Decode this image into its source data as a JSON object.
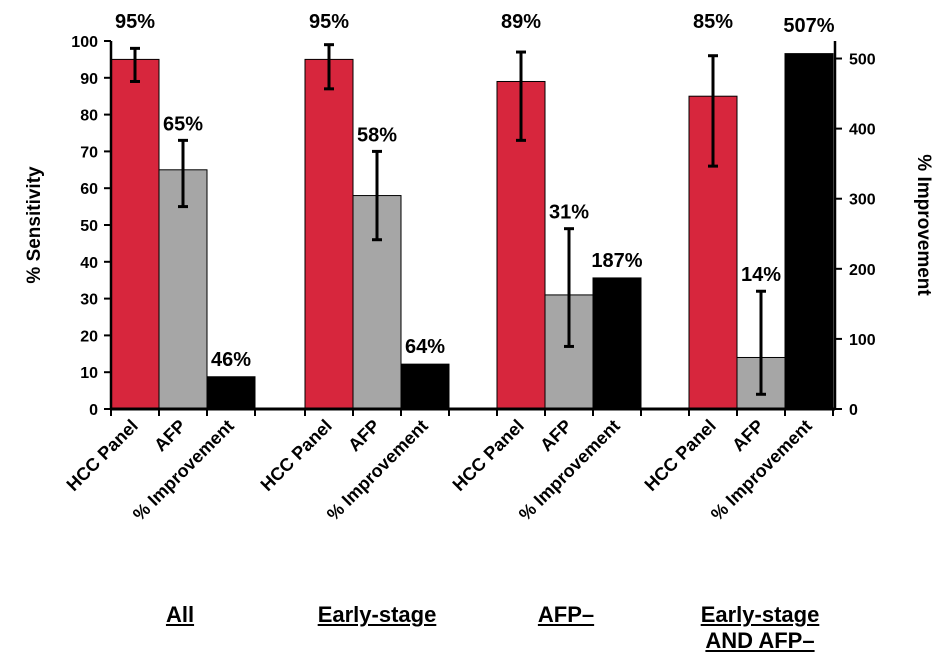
{
  "chart_data": {
    "type": "bar",
    "y_left_label": "% Sensitivity",
    "y_right_label": "% Improvement",
    "y_left_range": [
      0,
      100
    ],
    "y_left_ticks": [
      "0",
      "10",
      "20",
      "30",
      "40",
      "50",
      "60",
      "70",
      "80",
      "90",
      "100"
    ],
    "y_right_range": [
      0,
      525
    ],
    "y_right_ticks": [
      "0",
      "100",
      "200",
      "300",
      "400",
      "500"
    ],
    "grid": false,
    "legend": "none",
    "bar_colors": {
      "HCC Panel": "#d7263d",
      "AFP": "#a6a6a6",
      "% Improvement": "#000000"
    },
    "groups": [
      {
        "name": "All",
        "bars": [
          {
            "category": "HCC Panel",
            "axis": "left",
            "value": 95,
            "error": [
              89,
              98
            ],
            "label": "95%"
          },
          {
            "category": "AFP",
            "axis": "left",
            "value": 65,
            "error": [
              55,
              73
            ],
            "label": "65%"
          },
          {
            "category": "% Improvement",
            "axis": "right",
            "value": 46,
            "label": "46%"
          }
        ]
      },
      {
        "name": "Early-stage",
        "bars": [
          {
            "category": "HCC Panel",
            "axis": "left",
            "value": 95,
            "error": [
              87,
              99
            ],
            "label": "95%"
          },
          {
            "category": "AFP",
            "axis": "left",
            "value": 58,
            "error": [
              46,
              70
            ],
            "label": "58%"
          },
          {
            "category": "% Improvement",
            "axis": "right",
            "value": 64,
            "label": "64%"
          }
        ]
      },
      {
        "name": "AFP–",
        "bars": [
          {
            "category": "HCC Panel",
            "axis": "left",
            "value": 89,
            "error": [
              73,
              97
            ],
            "label": "89%"
          },
          {
            "category": "AFP",
            "axis": "left",
            "value": 31,
            "error": [
              17,
              49
            ],
            "label": "31%"
          },
          {
            "category": "% Improvement",
            "axis": "right",
            "value": 187,
            "label": "187%"
          }
        ]
      },
      {
        "name": "Early-stage AND AFP–",
        "name_lines": [
          "Early-stage",
          "AND AFP–"
        ],
        "bars": [
          {
            "category": "HCC Panel",
            "axis": "left",
            "value": 85,
            "error": [
              66,
              96
            ],
            "label": "85%"
          },
          {
            "category": "AFP",
            "axis": "left",
            "value": 14,
            "error": [
              4,
              32
            ],
            "label": "14%"
          },
          {
            "category": "% Improvement",
            "axis": "right",
            "value": 507,
            "label": "507%"
          }
        ]
      }
    ]
  }
}
